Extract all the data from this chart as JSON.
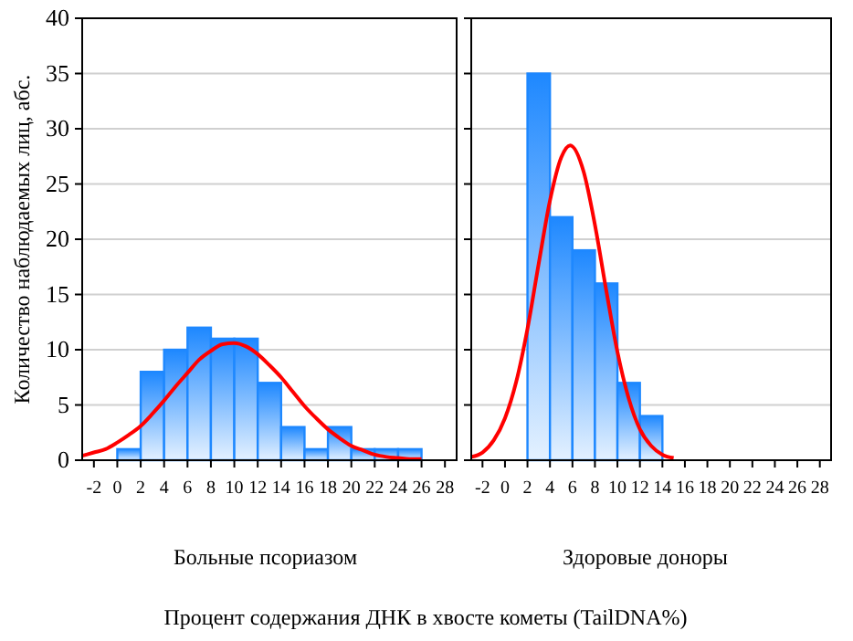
{
  "chart_data": [
    {
      "type": "histogram",
      "xlabel": "Больные псориазом",
      "ylabel": "Количество наблюдаемых лиц, абс.",
      "annotations": [
        "Процент содержания ДНК в хвосте кометы (TailDNA%)"
      ],
      "bins": [
        0,
        2,
        4,
        6,
        8,
        10,
        12,
        14,
        16,
        18,
        20,
        22,
        24,
        26
      ],
      "values": [
        1,
        8,
        10,
        12,
        11,
        11,
        7,
        3,
        1,
        3,
        1,
        1,
        1
      ],
      "color": "#1e88ff",
      "series": [
        {
          "type": "line",
          "color": "#ff0000",
          "x": [
            -3,
            -2,
            -1,
            0,
            1,
            2,
            3,
            4,
            5,
            6,
            7,
            8,
            9,
            10,
            11,
            12,
            13,
            14,
            15,
            16,
            17,
            18,
            19,
            20,
            21,
            22,
            23,
            24,
            25,
            26
          ],
          "values": [
            0.4,
            0.7,
            1.0,
            1.6,
            2.3,
            3.1,
            4.2,
            5.4,
            6.7,
            7.9,
            9.1,
            9.9,
            10.5,
            10.6,
            10.3,
            9.6,
            8.6,
            7.5,
            6.2,
            4.9,
            3.8,
            2.8,
            2.0,
            1.3,
            0.9,
            0.5,
            0.3,
            0.2,
            0.1,
            0.1
          ]
        }
      ],
      "xlim": [
        -3,
        29
      ],
      "xticks": [
        -2,
        0,
        2,
        4,
        6,
        8,
        10,
        12,
        14,
        16,
        18,
        20,
        22,
        24,
        26,
        28
      ],
      "ylim": [
        0,
        40
      ],
      "yticks": [
        0,
        5,
        10,
        15,
        20,
        25,
        30,
        35,
        40
      ],
      "grid": "y"
    },
    {
      "type": "histogram",
      "xlabel": "Здоровые доноры",
      "bins": [
        2,
        4,
        6,
        8,
        10,
        12,
        14
      ],
      "values": [
        35,
        22,
        19,
        16,
        7,
        4
      ],
      "color": "#1e88ff",
      "series": [
        {
          "type": "line",
          "color": "#ff0000",
          "x": [
            -3,
            -2,
            -1,
            0,
            1,
            2,
            3,
            4,
            5,
            5.8,
            7,
            8,
            9,
            10,
            11,
            12,
            13,
            14,
            15
          ],
          "values": [
            0.3,
            0.7,
            1.8,
            3.8,
            7.1,
            11.9,
            17.8,
            23.5,
            27.4,
            28.5,
            26.1,
            21.3,
            15.4,
            9.8,
            5.6,
            2.8,
            1.3,
            0.5,
            0.2
          ]
        }
      ],
      "xlim": [
        -3,
        29
      ],
      "xticks": [
        -2,
        0,
        2,
        4,
        6,
        8,
        10,
        12,
        14,
        16,
        18,
        20,
        22,
        24,
        26,
        28
      ],
      "ylim": [
        0,
        40
      ],
      "yticks": [
        0,
        5,
        10,
        15,
        20,
        25,
        30,
        35,
        40
      ],
      "grid": "y",
      "tick_labels": "x"
    }
  ]
}
